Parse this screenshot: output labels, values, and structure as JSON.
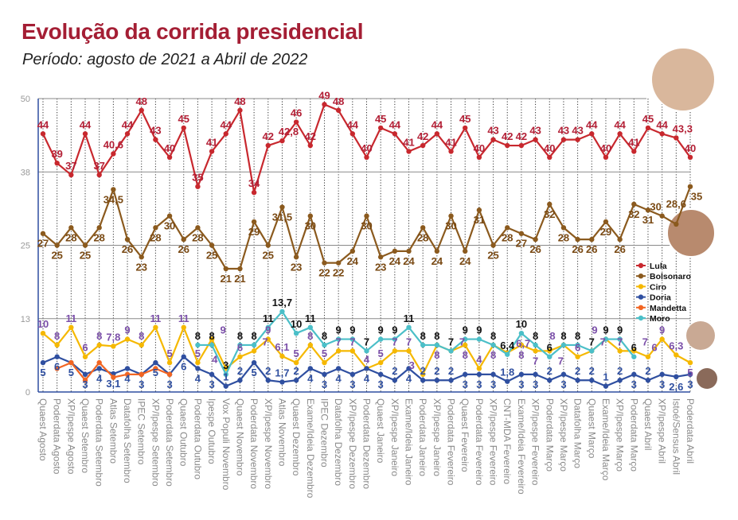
{
  "chart_data": {
    "type": "line",
    "title": "Evolução da corrida presidencial",
    "subtitle": "Período: agosto de 2021 a Abril de 2022",
    "xlabel": "",
    "ylabel": "",
    "ylim": [
      0,
      50
    ],
    "yticks": [
      "0",
      "13",
      "25",
      "38",
      "50"
    ],
    "grid": true,
    "legend_position": "right",
    "categories": [
      "Quaest Agosto",
      "Poderdata Agosto",
      "XP/Ipespe Agosto",
      "Quaest Setembro",
      "Poderdata Setembro",
      "Atlas Setembro",
      "Datafolha Setembro",
      "IPEC Setembro",
      "XP/Ipespe Setembro",
      "Poderdata Setembro",
      "Quaest Outubro",
      "Poderdata Outubro",
      "Ipespe Outubro",
      "Vox Populi Novembro",
      "Quaest Novembro",
      "Poderdata Novembro",
      "XP/Ipespe Novembro",
      "Atlas Novembro",
      "Quaest Dezembro",
      "Exame/Ideia Dezembro",
      "IPEC Dezembro",
      "Datafolha Dezembro",
      "XP/Ipespe Dezembro",
      "Poderdata Dezembro",
      "Quaest Janeiro",
      "XP/Ipespe Janeiro",
      "Exame/Ideia Janeiro",
      "Poderdata Janeiro",
      "XP/Ipespe Janeiro",
      "Poderdata Fevereiro",
      "Quaest Fevereiro",
      "Poderdata Fevereiro",
      "XP/Ipespe Fevereiro",
      "CNT-MDA Fevereiro",
      "Exame/Ideia Fevereiro",
      "XP/Ipespe Fevereiro",
      "Poderdata Março",
      "XP/Ipespe Março",
      "Datafolha Março",
      "Quaest Março",
      "Exame/Ideia Março",
      "XP/Ipespe Março",
      "Poderdata Março",
      "Quaest Abril",
      "XP/Ipespe Abril",
      "Istoé/Sensus Abril",
      "Poderdata Abril"
    ],
    "series": [
      {
        "name": "Lula",
        "color": "#c8282e",
        "label_color": "#b31f35",
        "values": [
          44,
          39,
          37,
          44,
          37,
          40.6,
          44,
          48,
          43,
          40,
          45,
          35,
          41,
          44,
          48,
          34,
          42,
          42.8,
          46,
          42,
          49,
          48,
          44,
          40,
          45,
          44,
          41,
          42,
          44,
          41,
          45,
          40,
          43,
          42,
          42,
          43,
          40,
          43,
          43,
          44,
          40,
          44,
          41,
          45,
          44,
          43.3,
          40
        ]
      },
      {
        "name": "Bolsonaro",
        "color": "#8b5a1e",
        "label_color": "#7a4a14",
        "values": [
          27,
          25,
          28,
          25,
          28,
          34.5,
          26,
          23,
          28,
          30,
          26,
          28,
          25,
          21,
          21,
          29,
          25,
          31.5,
          23,
          30,
          22,
          22,
          24,
          30,
          23,
          24,
          24,
          28,
          24,
          30,
          24,
          31,
          25,
          28,
          27,
          26,
          32,
          28,
          26,
          26,
          29,
          26,
          32,
          31,
          30,
          28.6,
          35
        ]
      },
      {
        "name": "Ciro",
        "color": "#f5b800",
        "label_color": "#7b4fa9",
        "values": [
          10,
          8,
          11,
          6,
          8,
          7.8,
          9,
          8,
          11,
          5,
          11,
          5,
          9,
          4,
          6,
          7,
          9,
          6.1,
          5,
          8,
          5,
          7,
          7,
          4,
          5,
          7,
          7,
          3,
          8,
          7,
          8,
          4,
          8,
          6.7,
          8,
          7,
          7,
          8,
          6,
          7,
          9,
          7,
          7,
          6,
          9,
          6.3,
          5
        ]
      },
      {
        "name": "Doria",
        "color": "#2f4fa0",
        "label_color": "#2f4fa0",
        "values": [
          5,
          6,
          5,
          3,
          4,
          3.1,
          4,
          3,
          5,
          3,
          6,
          4,
          3,
          1,
          2,
          5,
          2,
          1.7,
          2,
          4,
          3,
          4,
          3,
          4,
          3,
          2,
          4,
          2,
          2,
          2,
          3,
          3,
          3,
          1.8,
          3,
          3,
          2,
          3,
          2,
          2,
          1,
          2,
          3,
          2,
          3,
          2.6,
          3
        ]
      },
      {
        "name": "Mandetta",
        "color": "#f26522",
        "label_color": null,
        "values": [
          null,
          4,
          5,
          2,
          5,
          2.5,
          3,
          3,
          4,
          3,
          null,
          null,
          null,
          null,
          null,
          null,
          null,
          null,
          null,
          null,
          null,
          null,
          null,
          null,
          null,
          null,
          null,
          null,
          null,
          null,
          null,
          null,
          null,
          null,
          null,
          null,
          null,
          null,
          null,
          null,
          null,
          null,
          null,
          null,
          null,
          null,
          null
        ]
      },
      {
        "name": "Moro",
        "color": "#4bbfc8",
        "label_color": "#111111",
        "values": [
          null,
          null,
          null,
          null,
          null,
          null,
          null,
          null,
          null,
          null,
          null,
          8,
          8,
          3,
          8,
          8,
          11,
          13.7,
          10,
          11,
          8,
          9,
          9,
          7,
          9,
          9,
          11,
          8,
          8,
          7,
          9,
          9,
          8,
          6.4,
          10,
          8,
          6,
          8,
          8,
          7,
          9,
          9,
          6,
          null,
          null,
          null,
          null
        ]
      }
    ]
  }
}
